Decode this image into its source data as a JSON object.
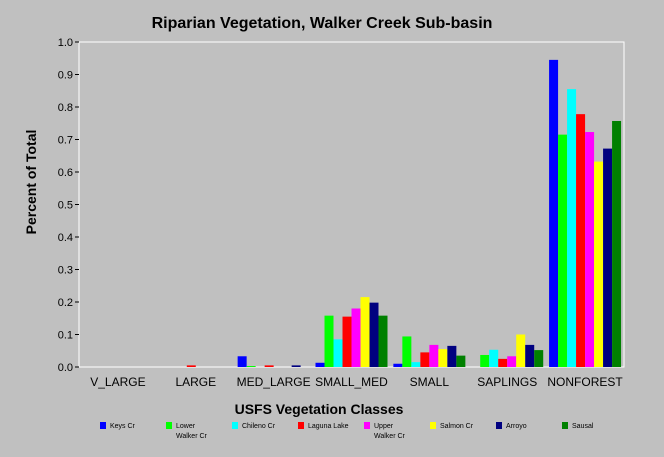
{
  "chart_data": {
    "type": "bar",
    "title": "Riparian Vegetation, Walker Creek Sub-basin",
    "xlabel": "USFS Vegetation Classes",
    "ylabel": "Percent of Total",
    "ylim": [
      0,
      1.0
    ],
    "yticks": [
      "0.0",
      "0.1",
      "0.2",
      "0.3",
      "0.4",
      "0.5",
      "0.6",
      "0.7",
      "0.8",
      "0.9",
      "1.0"
    ],
    "grid": false,
    "legend_position": "bottom",
    "categories": [
      "V_LARGE",
      "LARGE",
      "MED_LARGE",
      "SMALL_MED",
      "SMALL",
      "SAPLINGS",
      "NONFOREST"
    ],
    "series": [
      {
        "name": "Keys Cr",
        "label_lines": [
          "Keys Cr"
        ],
        "color": "#0000ff",
        "values": [
          0,
          0,
          0.033,
          0.013,
          0.01,
          0,
          0.945
        ]
      },
      {
        "name": "Lower Walker Cr",
        "label_lines": [
          "Lower",
          "Walker Cr"
        ],
        "color": "#00ff00",
        "values": [
          0,
          0,
          0.003,
          0.158,
          0.094,
          0.037,
          0.715
        ]
      },
      {
        "name": "Chileno Cr",
        "label_lines": [
          "Chileno Cr"
        ],
        "color": "#00ffff",
        "values": [
          0,
          0,
          0,
          0.085,
          0.015,
          0.053,
          0.855
        ]
      },
      {
        "name": "Laguna Lake",
        "label_lines": [
          "Laguna Lake"
        ],
        "color": "#ff0000",
        "values": [
          0,
          0.005,
          0.005,
          0.155,
          0.045,
          0.025,
          0.778
        ]
      },
      {
        "name": "Upper Walker Cr",
        "label_lines": [
          "Upper",
          "Walker Cr"
        ],
        "color": "#ff00ff",
        "values": [
          0,
          0,
          0,
          0.18,
          0.068,
          0.033,
          0.723
        ]
      },
      {
        "name": "Salmon Cr",
        "label_lines": [
          "Salmon Cr"
        ],
        "color": "#ffff00",
        "values": [
          0,
          0,
          0,
          0.215,
          0.055,
          0.1,
          0.632
        ]
      },
      {
        "name": "Arroyo",
        "label_lines": [
          "Arroyo"
        ],
        "color": "#000080",
        "values": [
          0,
          0,
          0.005,
          0.198,
          0.065,
          0.068,
          0.672
        ]
      },
      {
        "name": "Sausal",
        "label_lines": [
          "Sausal"
        ],
        "color": "#008000",
        "values": [
          0,
          0,
          0,
          0.158,
          0.035,
          0.052,
          0.757
        ]
      }
    ]
  }
}
